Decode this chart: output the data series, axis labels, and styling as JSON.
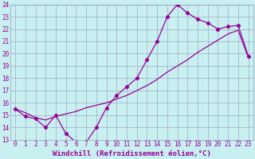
{
  "xlabel": "Windchill (Refroidissement éolien,°C)",
  "bg_color": "#c8f0f0",
  "line_color": "#990099",
  "marker": "D",
  "markersize": 2.2,
  "x_data": [
    0,
    1,
    2,
    3,
    4,
    5,
    6,
    7,
    8,
    9,
    10,
    11,
    12,
    13,
    14,
    15,
    16,
    17,
    18,
    19,
    20,
    21,
    22,
    23
  ],
  "y_jagged": [
    15.5,
    14.9,
    14.7,
    14.0,
    15.0,
    13.5,
    12.8,
    12.8,
    14.0,
    15.6,
    16.6,
    17.3,
    18.0,
    19.5,
    21.0,
    23.0,
    24.0,
    23.3,
    22.8,
    22.5,
    22.0,
    22.2,
    22.3,
    19.8
  ],
  "y_trend": [
    15.5,
    15.2,
    14.8,
    14.6,
    14.9,
    15.1,
    15.3,
    15.6,
    15.8,
    16.0,
    16.3,
    16.6,
    17.0,
    17.4,
    17.9,
    18.5,
    19.0,
    19.5,
    20.1,
    20.6,
    21.1,
    21.6,
    21.9,
    19.7
  ],
  "xlim_min": -0.5,
  "xlim_max": 23.5,
  "ylim_min": 13,
  "ylim_max": 24,
  "yticks": [
    13,
    14,
    15,
    16,
    17,
    18,
    19,
    20,
    21,
    22,
    23,
    24
  ],
  "xticks": [
    0,
    1,
    2,
    3,
    4,
    5,
    6,
    7,
    8,
    9,
    10,
    11,
    12,
    13,
    14,
    15,
    16,
    17,
    18,
    19,
    20,
    21,
    22,
    23
  ],
  "grid_color": "#9999bb",
  "xlabel_fontsize": 6.5,
  "tick_fontsize": 5.5,
  "linewidth": 0.9
}
